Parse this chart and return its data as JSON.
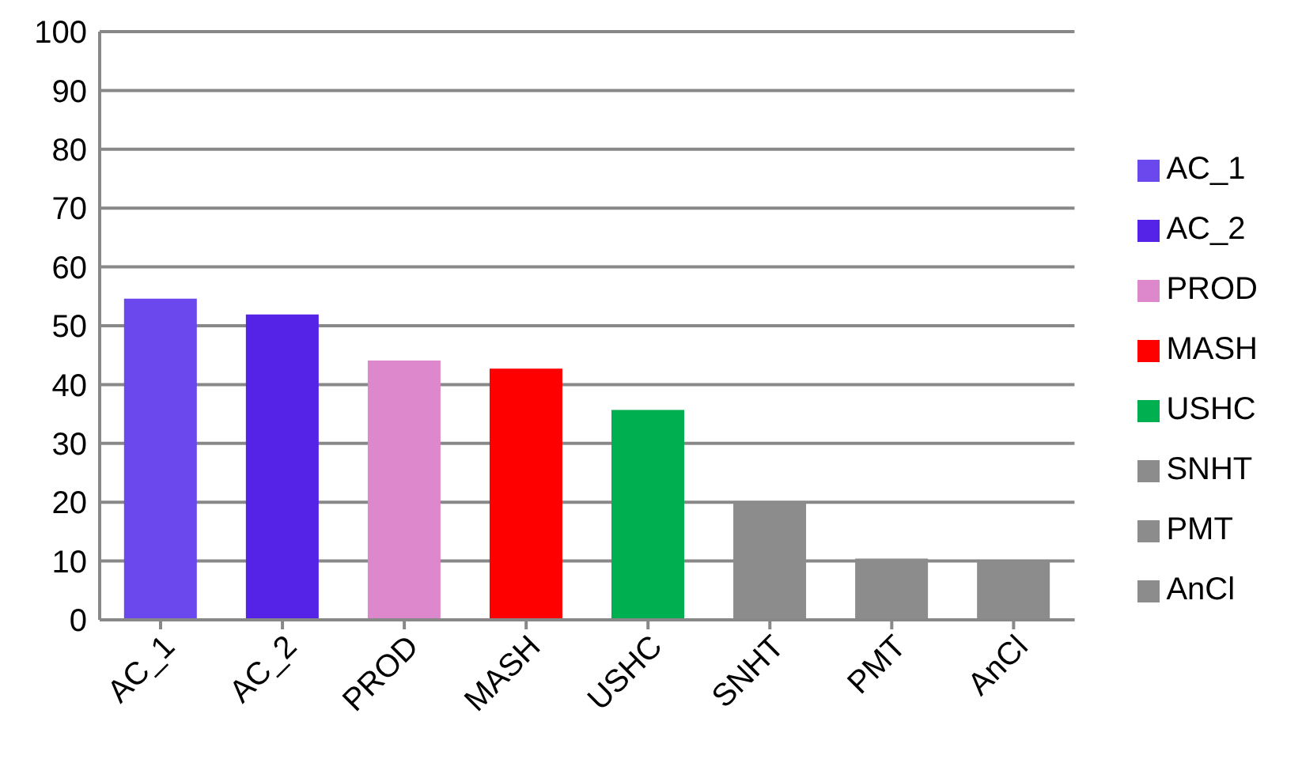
{
  "chart_data": {
    "type": "bar",
    "categories": [
      "AC_1",
      "AC_2",
      "PROD",
      "MASH",
      "USHC",
      "SNHT",
      "PMT",
      "AnCl"
    ],
    "stacked": true,
    "series": [
      {
        "name": "AC_1",
        "color": "#6a48ee",
        "values": [
          54.6,
          null,
          null,
          null,
          null,
          null,
          null,
          null
        ]
      },
      {
        "name": "AC_2",
        "color": "#5522e8",
        "values": [
          null,
          51.9,
          null,
          null,
          null,
          null,
          null,
          null
        ]
      },
      {
        "name": "PROD",
        "color": "#dd88cc",
        "values": [
          null,
          null,
          44.1,
          null,
          null,
          null,
          null,
          null
        ]
      },
      {
        "name": "MASH",
        "color": "#ff0000",
        "values": [
          null,
          null,
          null,
          42.7,
          null,
          null,
          null,
          null
        ]
      },
      {
        "name": "USHC",
        "color": "#00b050",
        "values": [
          null,
          null,
          null,
          null,
          35.7,
          null,
          null,
          null
        ]
      },
      {
        "name": "SNHT",
        "color": "#8c8c8c",
        "values": [
          null,
          null,
          null,
          null,
          null,
          20,
          null,
          null
        ]
      },
      {
        "name": "PMT",
        "color": "#8c8c8c",
        "values": [
          null,
          null,
          null,
          null,
          null,
          null,
          10.4,
          null
        ]
      },
      {
        "name": "AnCl",
        "color": "#8c8c8c",
        "values": [
          null,
          null,
          null,
          null,
          null,
          null,
          null,
          10
        ]
      }
    ],
    "ylim": [
      0,
      100
    ],
    "yticks": [
      0,
      10,
      20,
      30,
      40,
      50,
      60,
      70,
      80,
      90,
      100
    ],
    "grid": "y",
    "legend": "right"
  }
}
